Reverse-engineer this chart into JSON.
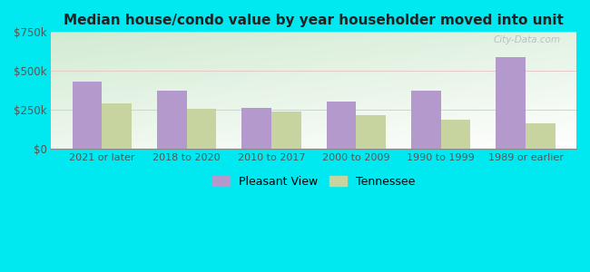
{
  "title": "Median house/condo value by year householder moved into unit",
  "categories": [
    "2021 or later",
    "2018 to 2020",
    "2010 to 2017",
    "2000 to 2009",
    "1990 to 1999",
    "1989 or earlier"
  ],
  "pleasant_view": [
    430000,
    375000,
    265000,
    305000,
    375000,
    590000
  ],
  "tennessee": [
    295000,
    258000,
    242000,
    215000,
    190000,
    165000
  ],
  "pleasant_view_color": "#b399cc",
  "tennessee_color": "#c8d4a0",
  "background_outer": "#00e8f0",
  "ylim": [
    0,
    750000
  ],
  "yticks": [
    0,
    250000,
    500000,
    750000
  ],
  "ytick_labels": [
    "$0",
    "$250k",
    "$500k",
    "$750k"
  ],
  "legend_labels": [
    "Pleasant View",
    "Tennessee"
  ],
  "watermark": "City-Data.com"
}
